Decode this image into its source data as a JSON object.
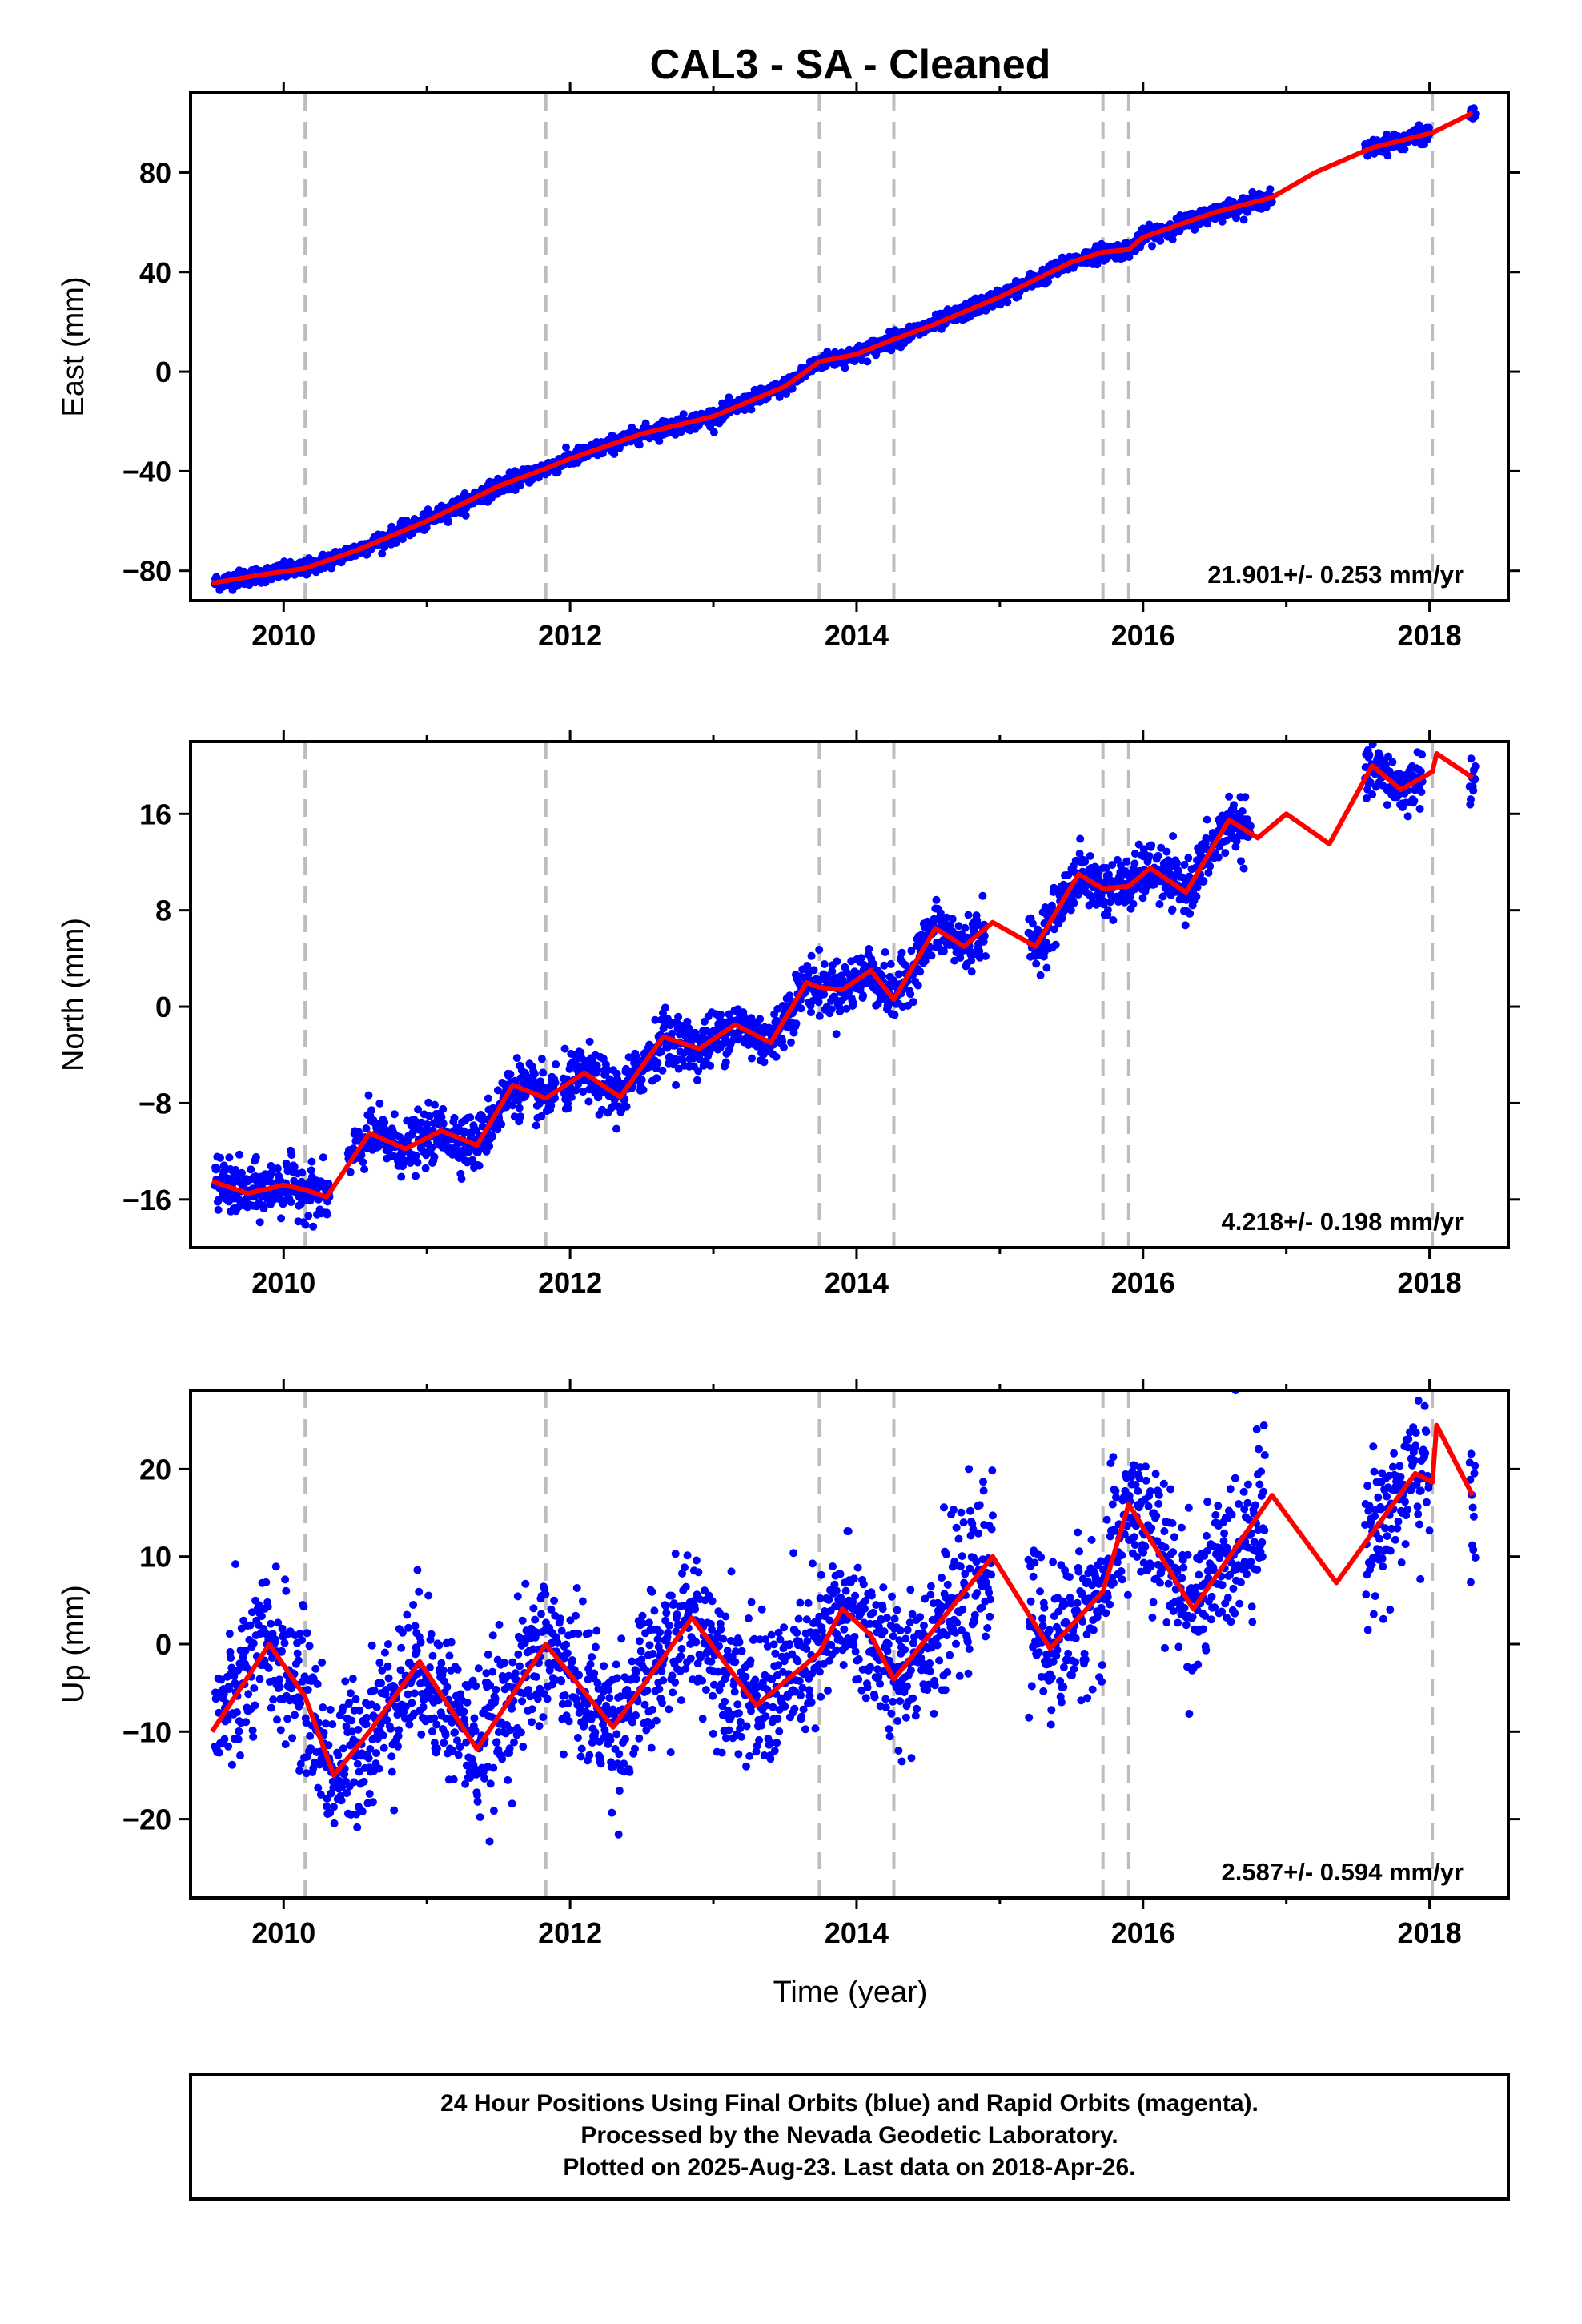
{
  "title": "CAL3  - SA - Cleaned",
  "xlabel": "Time (year)",
  "caption": [
    "24 Hour Positions Using Final Orbits (blue) and Rapid Orbits (magenta).",
    "Processed by the Nevada Geodetic Laboratory.",
    "Plotted on 2025-Aug-23. Last data on 2018-Apr-26."
  ],
  "colors": {
    "data": "#0000ff",
    "fit": "#ff0000",
    "steps": "#bdbdbd"
  },
  "chart_data": [
    {
      "type": "scatter",
      "name": "east",
      "ylabel": "East (mm)",
      "rate_label": "21.901+/- 0.253 mm/yr",
      "xlim": [
        2009.35,
        2018.55
      ],
      "ylim": [
        -92,
        112
      ],
      "xticks": [
        2010,
        2012,
        2014,
        2016,
        2018
      ],
      "yticks": [
        -80,
        -40,
        0,
        40,
        80
      ],
      "step_epochs": [
        2010.15,
        2011.83,
        2013.74,
        2014.26,
        2015.72,
        2015.9,
        2018.02
      ],
      "fit": [
        [
          2009.5,
          -85
        ],
        [
          2009.8,
          -82
        ],
        [
          2010.15,
          -79
        ],
        [
          2010.5,
          -72
        ],
        [
          2011.0,
          -60
        ],
        [
          2011.5,
          -46
        ],
        [
          2011.83,
          -39
        ],
        [
          2012.0,
          -35
        ],
        [
          2012.5,
          -25
        ],
        [
          2013.0,
          -18
        ],
        [
          2013.5,
          -6
        ],
        [
          2013.74,
          4
        ],
        [
          2014.0,
          7
        ],
        [
          2014.26,
          13
        ],
        [
          2014.5,
          18
        ],
        [
          2015.0,
          30
        ],
        [
          2015.5,
          44
        ],
        [
          2015.72,
          48
        ],
        [
          2015.9,
          49
        ],
        [
          2016.0,
          54
        ],
        [
          2016.5,
          64
        ],
        [
          2016.9,
          70
        ],
        [
          2017.2,
          80
        ],
        [
          2017.6,
          90
        ],
        [
          2018.02,
          96
        ],
        [
          2018.3,
          104
        ]
      ],
      "segments": [
        [
          2009.52,
          2016.9
        ],
        [
          2017.55,
          2018.0
        ],
        [
          2018.28,
          2018.32
        ]
      ],
      "scatter_sd": 1.6
    },
    {
      "type": "scatter",
      "name": "north",
      "ylabel": "North (mm)",
      "rate_label": "4.218+/- 0.198 mm/yr",
      "xlim": [
        2009.35,
        2018.55
      ],
      "ylim": [
        -20,
        22
      ],
      "xticks": [
        2010,
        2012,
        2014,
        2016,
        2018
      ],
      "yticks": [
        -16,
        -8,
        0,
        8,
        16
      ],
      "step_epochs": [
        2010.15,
        2011.83,
        2013.74,
        2014.26,
        2015.72,
        2015.9,
        2018.02
      ],
      "fit": [
        [
          2009.5,
          -14.5
        ],
        [
          2009.75,
          -15.5
        ],
        [
          2010.0,
          -14.8
        ],
        [
          2010.15,
          -15.2
        ],
        [
          2010.3,
          -15.8
        ],
        [
          2010.6,
          -10.5
        ],
        [
          2010.85,
          -11.8
        ],
        [
          2011.1,
          -10.3
        ],
        [
          2011.35,
          -11.5
        ],
        [
          2011.6,
          -6.5
        ],
        [
          2011.83,
          -7.6
        ],
        [
          2012.1,
          -5.5
        ],
        [
          2012.35,
          -7.5
        ],
        [
          2012.65,
          -2.5
        ],
        [
          2012.9,
          -3.5
        ],
        [
          2013.15,
          -1.5
        ],
        [
          2013.4,
          -3.0
        ],
        [
          2013.65,
          2.0
        ],
        [
          2013.74,
          1.6
        ],
        [
          2013.9,
          1.4
        ],
        [
          2014.1,
          3.0
        ],
        [
          2014.26,
          0.6
        ],
        [
          2014.55,
          6.5
        ],
        [
          2014.75,
          5.0
        ],
        [
          2014.95,
          7.0
        ],
        [
          2015.25,
          5.0
        ],
        [
          2015.55,
          11.0
        ],
        [
          2015.72,
          9.8
        ],
        [
          2015.9,
          10.0
        ],
        [
          2016.05,
          11.5
        ],
        [
          2016.3,
          9.5
        ],
        [
          2016.6,
          15.5
        ],
        [
          2016.8,
          14.0
        ],
        [
          2017.0,
          16.0
        ],
        [
          2017.3,
          13.5
        ],
        [
          2017.6,
          20.0
        ],
        [
          2017.8,
          18.0
        ],
        [
          2018.02,
          19.5
        ],
        [
          2018.05,
          21.0
        ],
        [
          2018.3,
          19.0
        ]
      ],
      "segments": [
        [
          2009.52,
          2010.32
        ],
        [
          2010.45,
          2011.9
        ],
        [
          2011.95,
          2014.9
        ],
        [
          2015.2,
          2016.75
        ],
        [
          2017.55,
          2017.95
        ],
        [
          2018.28,
          2018.32
        ]
      ],
      "scatter_sd": 1.1
    },
    {
      "type": "scatter",
      "name": "up",
      "ylabel": "Up (mm)",
      "rate_label": "2.587+/- 0.594 mm/yr",
      "xlim": [
        2009.35,
        2018.55
      ],
      "ylim": [
        -29,
        29
      ],
      "xticks": [
        2010,
        2012,
        2014,
        2016,
        2018
      ],
      "yticks": [
        -20,
        -10,
        0,
        10,
        20
      ],
      "step_epochs": [
        2010.15,
        2011.83,
        2013.74,
        2014.26,
        2015.72,
        2015.9,
        2018.02
      ],
      "fit": [
        [
          2009.5,
          -10
        ],
        [
          2009.9,
          0
        ],
        [
          2010.15,
          -6
        ],
        [
          2010.35,
          -15
        ],
        [
          2010.6,
          -10
        ],
        [
          2010.95,
          -2
        ],
        [
          2011.35,
          -12
        ],
        [
          2011.83,
          0
        ],
        [
          2012.3,
          -9.5
        ],
        [
          2012.85,
          3
        ],
        [
          2013.3,
          -7
        ],
        [
          2013.74,
          -1
        ],
        [
          2013.9,
          4
        ],
        [
          2014.1,
          1
        ],
        [
          2014.26,
          -4
        ],
        [
          2014.95,
          10
        ],
        [
          2015.35,
          -0.5
        ],
        [
          2015.72,
          6
        ],
        [
          2015.9,
          16
        ],
        [
          2016.35,
          4
        ],
        [
          2016.9,
          17
        ],
        [
          2017.35,
          7
        ],
        [
          2017.9,
          19.5
        ],
        [
          2018.02,
          18.5
        ],
        [
          2018.05,
          25
        ],
        [
          2018.3,
          17
        ]
      ],
      "segments": [
        [
          2009.52,
          2014.95
        ],
        [
          2015.2,
          2016.85
        ],
        [
          2017.55,
          2018.0
        ],
        [
          2018.28,
          2018.32
        ]
      ],
      "scatter_sd": 4.2
    }
  ]
}
